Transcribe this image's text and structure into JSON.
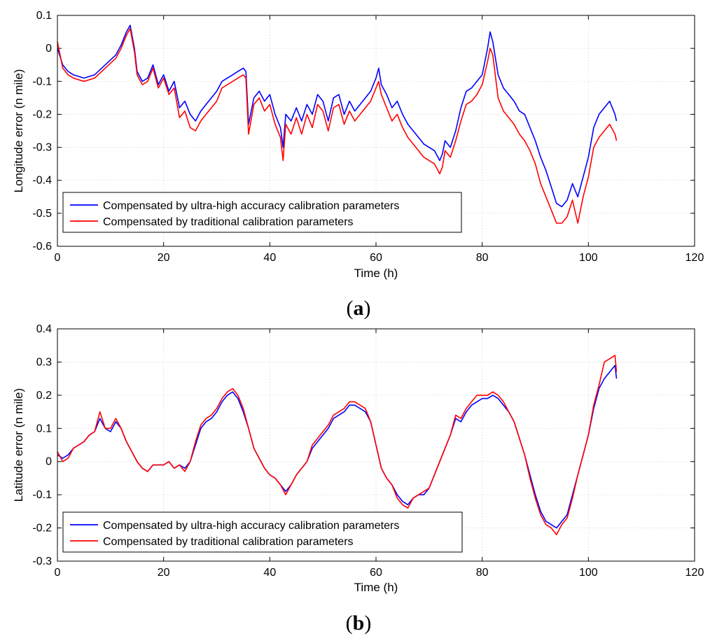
{
  "colors": {
    "ultra": "#0000ff",
    "traditional": "#ff0000"
  },
  "chart_data": [
    {
      "type": "line",
      "caption_letter": "a",
      "caption_open": "(",
      "caption_close": ")",
      "xlabel": "Time (h)",
      "ylabel": "Longitude error (n mile)",
      "xlim": [
        0,
        120
      ],
      "ylim": [
        -0.6,
        0.1
      ],
      "xticks": [
        0,
        20,
        40,
        60,
        80,
        100,
        120
      ],
      "yticks": [
        0.1,
        0,
        -0.1,
        -0.2,
        -0.3,
        -0.4,
        -0.5,
        -0.6
      ],
      "grid": true,
      "legend_position": "bottom-left",
      "series": [
        {
          "name": "Compensated by ultra-high accuracy calibration parameters",
          "color": "#0000ff",
          "x": [
            0,
            1,
            2,
            3,
            5,
            7,
            9,
            11,
            12,
            13,
            13.7,
            14.5,
            15,
            16,
            17,
            18,
            19,
            20,
            21,
            22,
            23,
            24,
            25,
            26,
            27,
            28,
            29,
            30,
            31,
            32,
            33,
            34,
            35,
            35.5,
            36,
            37,
            38,
            39,
            40,
            41,
            42,
            42.5,
            43,
            44,
            45,
            46,
            47,
            48,
            49,
            50,
            51,
            52,
            53,
            54,
            55,
            56,
            57,
            58,
            59,
            60,
            60.5,
            61,
            62,
            63,
            64,
            65,
            66,
            67,
            68,
            69,
            70,
            71,
            72,
            72.5,
            73,
            74,
            75,
            76,
            77,
            78,
            79,
            80,
            81,
            81.5,
            82,
            83,
            84,
            85,
            86,
            87,
            88,
            89,
            90,
            91,
            92,
            93,
            94,
            95,
            96,
            97,
            98,
            99,
            100,
            101,
            102,
            103,
            104,
            105,
            105.3
          ],
          "y": [
            0.0,
            -0.05,
            -0.07,
            -0.08,
            -0.09,
            -0.08,
            -0.05,
            -0.02,
            0.01,
            0.05,
            0.07,
            0.0,
            -0.07,
            -0.1,
            -0.09,
            -0.05,
            -0.11,
            -0.08,
            -0.13,
            -0.1,
            -0.18,
            -0.16,
            -0.2,
            -0.22,
            -0.19,
            -0.17,
            -0.15,
            -0.13,
            -0.1,
            -0.09,
            -0.08,
            -0.07,
            -0.06,
            -0.07,
            -0.23,
            -0.15,
            -0.13,
            -0.16,
            -0.14,
            -0.2,
            -0.24,
            -0.3,
            -0.2,
            -0.22,
            -0.18,
            -0.22,
            -0.17,
            -0.2,
            -0.14,
            -0.16,
            -0.22,
            -0.15,
            -0.14,
            -0.2,
            -0.16,
            -0.19,
            -0.17,
            -0.15,
            -0.13,
            -0.09,
            -0.06,
            -0.11,
            -0.14,
            -0.18,
            -0.16,
            -0.2,
            -0.23,
            -0.25,
            -0.27,
            -0.29,
            -0.3,
            -0.31,
            -0.34,
            -0.32,
            -0.28,
            -0.3,
            -0.25,
            -0.18,
            -0.13,
            -0.12,
            -0.1,
            -0.08,
            0.0,
            0.05,
            0.02,
            -0.08,
            -0.12,
            -0.14,
            -0.16,
            -0.19,
            -0.2,
            -0.24,
            -0.28,
            -0.33,
            -0.37,
            -0.42,
            -0.47,
            -0.48,
            -0.46,
            -0.41,
            -0.45,
            -0.39,
            -0.33,
            -0.24,
            -0.2,
            -0.18,
            -0.16,
            -0.2,
            -0.22
          ]
        },
        {
          "name": "Compensated by traditional calibration parameters",
          "color": "#ff0000",
          "x": [
            0,
            1,
            2,
            3,
            5,
            7,
            9,
            11,
            12,
            13,
            13.7,
            14.5,
            15,
            16,
            17,
            18,
            19,
            20,
            21,
            22,
            23,
            24,
            25,
            26,
            27,
            28,
            29,
            30,
            31,
            32,
            33,
            34,
            35,
            35.5,
            36,
            37,
            38,
            39,
            40,
            41,
            42,
            42.5,
            43,
            44,
            45,
            46,
            47,
            48,
            49,
            50,
            51,
            52,
            53,
            54,
            55,
            56,
            57,
            58,
            59,
            60,
            60.5,
            61,
            62,
            63,
            64,
            65,
            66,
            67,
            68,
            69,
            70,
            71,
            72,
            72.5,
            73,
            74,
            75,
            76,
            77,
            78,
            79,
            80,
            81,
            81.5,
            82,
            83,
            84,
            85,
            86,
            87,
            88,
            89,
            90,
            91,
            92,
            93,
            94,
            95,
            96,
            97,
            98,
            99,
            100,
            101,
            102,
            103,
            104,
            105,
            105.3
          ],
          "y": [
            0.02,
            -0.06,
            -0.08,
            -0.09,
            -0.1,
            -0.09,
            -0.06,
            -0.03,
            0.0,
            0.04,
            0.06,
            -0.01,
            -0.08,
            -0.11,
            -0.1,
            -0.06,
            -0.12,
            -0.09,
            -0.14,
            -0.12,
            -0.21,
            -0.19,
            -0.24,
            -0.25,
            -0.22,
            -0.2,
            -0.18,
            -0.16,
            -0.12,
            -0.11,
            -0.1,
            -0.09,
            -0.08,
            -0.09,
            -0.26,
            -0.17,
            -0.15,
            -0.19,
            -0.17,
            -0.23,
            -0.27,
            -0.34,
            -0.23,
            -0.26,
            -0.21,
            -0.26,
            -0.2,
            -0.24,
            -0.17,
            -0.19,
            -0.25,
            -0.18,
            -0.17,
            -0.23,
            -0.19,
            -0.22,
            -0.2,
            -0.18,
            -0.16,
            -0.12,
            -0.1,
            -0.14,
            -0.18,
            -0.22,
            -0.2,
            -0.24,
            -0.27,
            -0.29,
            -0.31,
            -0.33,
            -0.34,
            -0.35,
            -0.38,
            -0.36,
            -0.31,
            -0.33,
            -0.28,
            -0.22,
            -0.17,
            -0.16,
            -0.14,
            -0.11,
            -0.04,
            0.0,
            -0.02,
            -0.15,
            -0.19,
            -0.21,
            -0.23,
            -0.26,
            -0.28,
            -0.31,
            -0.35,
            -0.41,
            -0.45,
            -0.49,
            -0.53,
            -0.53,
            -0.51,
            -0.46,
            -0.53,
            -0.45,
            -0.39,
            -0.3,
            -0.27,
            -0.25,
            -0.23,
            -0.26,
            -0.28
          ]
        }
      ]
    },
    {
      "type": "line",
      "caption_letter": "b",
      "caption_open": "(",
      "caption_close": ")",
      "xlabel": "Time (h)",
      "ylabel": "Latitude error (n mile)",
      "xlim": [
        0,
        120
      ],
      "ylim": [
        -0.3,
        0.4
      ],
      "xticks": [
        0,
        20,
        40,
        60,
        80,
        100,
        120
      ],
      "yticks": [
        0.4,
        0.3,
        0.2,
        0.1,
        0,
        -0.1,
        -0.2,
        -0.3
      ],
      "grid": true,
      "legend_position": "bottom-left",
      "series": [
        {
          "name": "Compensated by ultra-high accuracy calibration parameters",
          "color": "#0000ff",
          "x": [
            0,
            1,
            2,
            3,
            4,
            5,
            6,
            7,
            8,
            9,
            10,
            11,
            12,
            13,
            14,
            15,
            16,
            17,
            18,
            19,
            20,
            21,
            22,
            23,
            24,
            25,
            26,
            27,
            28,
            29,
            30,
            31,
            32,
            33,
            34,
            35,
            36,
            37,
            38,
            39,
            40,
            41,
            42,
            43,
            44,
            45,
            46,
            47,
            48,
            49,
            50,
            51,
            52,
            53,
            54,
            55,
            56,
            57,
            58,
            59,
            60,
            61,
            62,
            63,
            64,
            65,
            66,
            67,
            68,
            69,
            70,
            71,
            72,
            73,
            74,
            75,
            76,
            77,
            78,
            79,
            80,
            81,
            82,
            83,
            84,
            85,
            86,
            87,
            88,
            89,
            90,
            91,
            92,
            93,
            94,
            95,
            96,
            97,
            98,
            99,
            100,
            101,
            102,
            103,
            104,
            105,
            105.3
          ],
          "y": [
            0.02,
            0.01,
            0.02,
            0.04,
            0.05,
            0.06,
            0.08,
            0.09,
            0.13,
            0.1,
            0.09,
            0.12,
            0.1,
            0.06,
            0.03,
            0.0,
            -0.02,
            -0.03,
            -0.01,
            -0.01,
            -0.01,
            0.0,
            -0.02,
            -0.01,
            -0.02,
            0.0,
            0.05,
            0.1,
            0.12,
            0.13,
            0.15,
            0.18,
            0.2,
            0.21,
            0.19,
            0.15,
            0.1,
            0.04,
            0.01,
            -0.02,
            -0.04,
            -0.05,
            -0.07,
            -0.09,
            -0.07,
            -0.04,
            -0.02,
            0.0,
            0.04,
            0.06,
            0.08,
            0.1,
            0.13,
            0.14,
            0.15,
            0.17,
            0.17,
            0.16,
            0.15,
            0.12,
            0.05,
            -0.02,
            -0.05,
            -0.07,
            -0.1,
            -0.12,
            -0.13,
            -0.11,
            -0.1,
            -0.1,
            -0.08,
            -0.04,
            0.0,
            0.04,
            0.08,
            0.13,
            0.12,
            0.15,
            0.17,
            0.18,
            0.19,
            0.19,
            0.2,
            0.19,
            0.17,
            0.15,
            0.12,
            0.07,
            0.02,
            -0.04,
            -0.1,
            -0.15,
            -0.18,
            -0.19,
            -0.2,
            -0.18,
            -0.16,
            -0.1,
            -0.04,
            0.02,
            0.08,
            0.16,
            0.22,
            0.25,
            0.27,
            0.29,
            0.25
          ]
        },
        {
          "name": "Compensated by traditional calibration parameters",
          "color": "#ff0000",
          "x": [
            0,
            1,
            2,
            3,
            4,
            5,
            6,
            7,
            8,
            9,
            10,
            11,
            12,
            13,
            14,
            15,
            16,
            17,
            18,
            19,
            20,
            21,
            22,
            23,
            24,
            25,
            26,
            27,
            28,
            29,
            30,
            31,
            32,
            33,
            34,
            35,
            36,
            37,
            38,
            39,
            40,
            41,
            42,
            43,
            44,
            45,
            46,
            47,
            48,
            49,
            50,
            51,
            52,
            53,
            54,
            55,
            56,
            57,
            58,
            59,
            60,
            61,
            62,
            63,
            64,
            65,
            66,
            67,
            68,
            69,
            70,
            71,
            72,
            73,
            74,
            75,
            76,
            77,
            78,
            79,
            80,
            81,
            82,
            83,
            84,
            85,
            86,
            87,
            88,
            89,
            90,
            91,
            92,
            93,
            94,
            95,
            96,
            97,
            98,
            99,
            100,
            101,
            102,
            103,
            104,
            105,
            105.3
          ],
          "y": [
            0.03,
            0.0,
            0.01,
            0.04,
            0.05,
            0.06,
            0.08,
            0.09,
            0.15,
            0.1,
            0.1,
            0.13,
            0.1,
            0.06,
            0.03,
            0.0,
            -0.02,
            -0.03,
            -0.01,
            -0.01,
            -0.01,
            0.0,
            -0.02,
            -0.01,
            -0.03,
            0.0,
            0.06,
            0.11,
            0.13,
            0.14,
            0.16,
            0.19,
            0.21,
            0.22,
            0.2,
            0.16,
            0.1,
            0.04,
            0.01,
            -0.02,
            -0.04,
            -0.05,
            -0.07,
            -0.1,
            -0.07,
            -0.04,
            -0.02,
            0.0,
            0.05,
            0.07,
            0.09,
            0.11,
            0.14,
            0.15,
            0.16,
            0.18,
            0.18,
            0.17,
            0.16,
            0.12,
            0.05,
            -0.02,
            -0.05,
            -0.07,
            -0.11,
            -0.13,
            -0.14,
            -0.11,
            -0.1,
            -0.09,
            -0.08,
            -0.04,
            0.0,
            0.04,
            0.08,
            0.14,
            0.13,
            0.16,
            0.18,
            0.2,
            0.2,
            0.2,
            0.21,
            0.2,
            0.18,
            0.15,
            0.12,
            0.07,
            0.02,
            -0.05,
            -0.11,
            -0.16,
            -0.19,
            -0.2,
            -0.22,
            -0.19,
            -0.17,
            -0.11,
            -0.04,
            0.02,
            0.08,
            0.17,
            0.23,
            0.3,
            0.31,
            0.32,
            0.27
          ]
        }
      ]
    }
  ]
}
